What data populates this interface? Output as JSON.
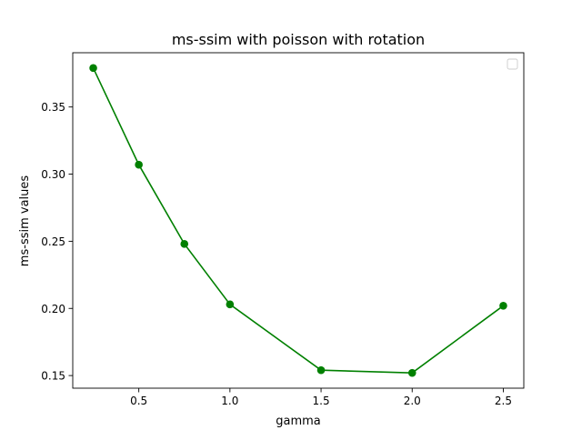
{
  "chart_data": {
    "type": "line",
    "title": "ms-ssim with poisson with rotation",
    "xlabel": "gamma",
    "ylabel": "ms-ssim values",
    "x": [
      0.25,
      0.5,
      0.75,
      1.0,
      1.5,
      2.0,
      2.5
    ],
    "series": [
      {
        "values": [
          0.379,
          0.307,
          0.248,
          0.203,
          0.154,
          0.152,
          0.202
        ]
      }
    ],
    "xticks": [
      0.5,
      1.0,
      1.5,
      2.0,
      2.5
    ],
    "xtick_labels": [
      "0.5",
      "1.0",
      "1.5",
      "2.0",
      "2.5"
    ],
    "yticks": [
      0.15,
      0.2,
      0.25,
      0.3,
      0.35
    ],
    "ytick_labels": [
      "0.15",
      "0.20",
      "0.25",
      "0.30",
      "0.35"
    ],
    "xlim": [
      0.1375,
      2.6125
    ],
    "ylim": [
      0.1406,
      0.3904
    ],
    "grid": false,
    "legend": "top-right, empty",
    "line_color": "#008000",
    "marker": "circle"
  }
}
